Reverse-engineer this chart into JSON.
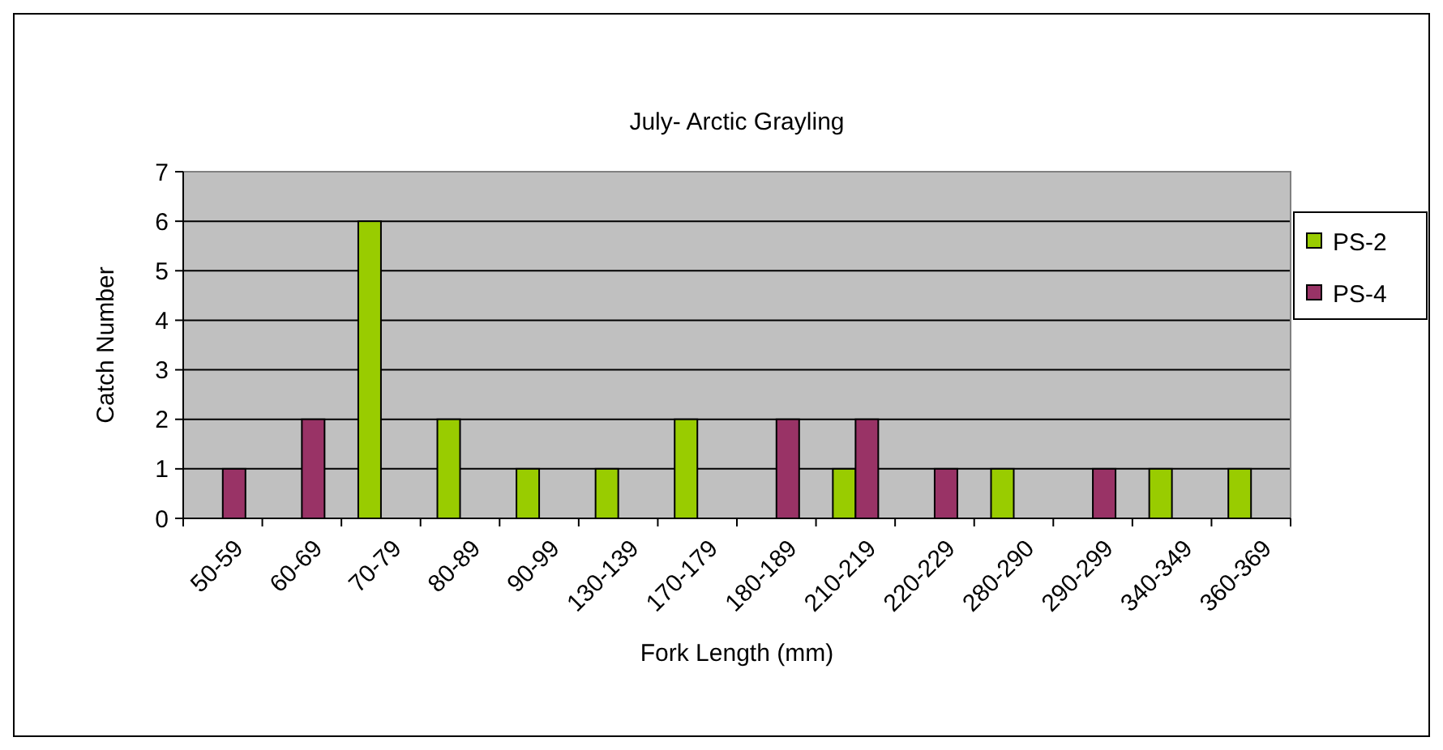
{
  "chart_data": {
    "type": "bar",
    "title": "July- Arctic Grayling",
    "xlabel": "Fork Length (mm)",
    "ylabel": "Catch Number",
    "categories": [
      "50-59",
      "60-69",
      "70-79",
      "80-89",
      "90-99",
      "130-139",
      "170-179",
      "180-189",
      "210-219",
      "220-229",
      "280-290",
      "290-299",
      "340-349",
      "360-369"
    ],
    "series": [
      {
        "name": "PS-2",
        "color": "#99cc00",
        "values": [
          null,
          null,
          6,
          2,
          1,
          1,
          2,
          null,
          1,
          null,
          1,
          null,
          1,
          1
        ]
      },
      {
        "name": "PS-4",
        "color": "#993366",
        "values": [
          1,
          2,
          null,
          null,
          null,
          null,
          null,
          2,
          2,
          1,
          null,
          1,
          null,
          null
        ]
      }
    ],
    "ylim": [
      0,
      7
    ],
    "yticks": [
      0,
      1,
      2,
      3,
      4,
      5,
      6,
      7
    ],
    "grid": "y",
    "legend": "right"
  }
}
